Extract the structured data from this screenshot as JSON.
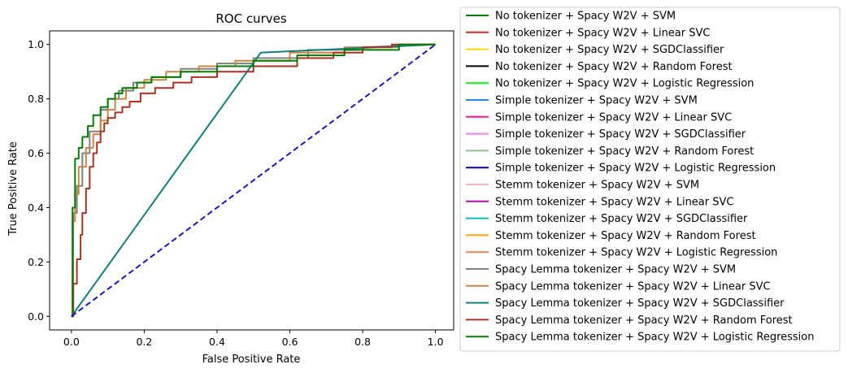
{
  "chart_data": {
    "type": "line",
    "title": "ROC curves",
    "xlabel": "False Positive Rate",
    "ylabel": "True Positive Rate",
    "xlim": [
      -0.06,
      1.05
    ],
    "ylim": [
      -0.05,
      1.05
    ],
    "xticks": [
      0.0,
      0.2,
      0.4,
      0.6,
      0.8,
      1.0
    ],
    "xtick_labels": [
      "0.0",
      "0.2",
      "0.4",
      "0.6",
      "0.8",
      "1.0"
    ],
    "yticks": [
      0.0,
      0.2,
      0.4,
      0.6,
      0.8,
      1.0
    ],
    "ytick_labels": [
      "0.0",
      "0.2",
      "0.4",
      "0.6",
      "0.8",
      "1.0"
    ],
    "grid": false,
    "legend_position": "outside-right",
    "diagonal": {
      "x": [
        0,
        1
      ],
      "y": [
        0,
        1
      ],
      "color": "#2010cc",
      "style": "dashed"
    },
    "series": [
      {
        "name": "No tokenizer + Spacy W2V + SVM",
        "color": "#008000"
      },
      {
        "name": "No tokenizer + Spacy W2V + Linear SVC",
        "color": "#e8221c"
      },
      {
        "name": "No tokenizer + Spacy W2V + SGDClassifier",
        "color": "#ffd700"
      },
      {
        "name": "No tokenizer + Spacy W2V + Random Forest",
        "color": "#000000"
      },
      {
        "name": "No tokenizer + Spacy W2V + Logistic Regression",
        "color": "#00ff00"
      },
      {
        "name": "Simple tokenizer + Spacy W2V + SVM",
        "color": "#1f8fe0"
      },
      {
        "name": "Simple tokenizer + Spacy W2V + Linear SVC",
        "color": "#ff1493"
      },
      {
        "name": "Simple tokenizer + Spacy W2V + SGDClassifier",
        "color": "#ee82ee"
      },
      {
        "name": "Simple tokenizer + Spacy W2V + Random Forest",
        "color": "#8fbc8f"
      },
      {
        "name": "Simple tokenizer + Spacy W2V + Logistic Regression",
        "color": "#0000b0"
      },
      {
        "name": "Stemm tokenizer + Spacy W2V + SVM",
        "color": "#ffb6c1"
      },
      {
        "name": "Stemm tokenizer + Spacy W2V + Linear SVC",
        "color": "#c000c0"
      },
      {
        "name": "Stemm tokenizer + Spacy W2V + SGDClassifier",
        "color": "#00bfbf"
      },
      {
        "name": "Stemm tokenizer + Spacy W2V + Random Forest",
        "color": "#ffa500"
      },
      {
        "name": "Stemm tokenizer + Spacy W2V + Logistic Regression",
        "color": "#f4844a"
      },
      {
        "name": "Spacy Lemma tokenizer + Spacy W2V + SVM",
        "color": "#808080",
        "x": [
          0,
          0.005,
          0.005,
          0.015,
          0.015,
          0.03,
          0.03,
          0.05,
          0.05,
          0.08,
          0.08,
          0.1,
          0.1,
          0.13,
          0.13,
          0.17,
          0.17,
          0.22,
          0.22,
          0.3,
          0.3,
          0.4,
          0.4,
          0.5,
          0.5,
          0.65,
          0.65,
          0.8,
          0.8,
          1.0
        ],
        "y": [
          0,
          0,
          0.38,
          0.38,
          0.48,
          0.48,
          0.6,
          0.6,
          0.68,
          0.68,
          0.76,
          0.76,
          0.8,
          0.8,
          0.83,
          0.83,
          0.86,
          0.86,
          0.88,
          0.88,
          0.91,
          0.91,
          0.93,
          0.93,
          0.95,
          0.95,
          0.98,
          0.98,
          0.99,
          1.0
        ]
      },
      {
        "name": "Spacy Lemma tokenizer + Spacy W2V + Linear SVC",
        "color": "#cd853f",
        "x": [
          0,
          0.003,
          0.003,
          0.01,
          0.01,
          0.02,
          0.02,
          0.04,
          0.04,
          0.06,
          0.06,
          0.08,
          0.08,
          0.1,
          0.1,
          0.12,
          0.12,
          0.15,
          0.15,
          0.2,
          0.2,
          0.26,
          0.26,
          0.35,
          0.35,
          0.45,
          0.45,
          0.6,
          0.6,
          0.75,
          0.75,
          0.9,
          0.9,
          1.0
        ],
        "y": [
          0,
          0,
          0.35,
          0.35,
          0.45,
          0.45,
          0.55,
          0.55,
          0.62,
          0.62,
          0.67,
          0.67,
          0.72,
          0.72,
          0.76,
          0.76,
          0.8,
          0.8,
          0.84,
          0.84,
          0.87,
          0.87,
          0.9,
          0.9,
          0.92,
          0.92,
          0.94,
          0.94,
          0.97,
          0.97,
          0.99,
          0.99,
          1.0,
          1.0
        ]
      },
      {
        "name": "Spacy Lemma tokenizer + Spacy W2V + SGDClassifier",
        "color": "#0f7f7f",
        "x": [
          0,
          0.52,
          1.0
        ],
        "y": [
          0,
          0.97,
          1.0
        ]
      },
      {
        "name": "Spacy Lemma tokenizer + Spacy W2V + Random Forest",
        "color": "#b03020",
        "x": [
          0,
          0.005,
          0.005,
          0.015,
          0.015,
          0.025,
          0.025,
          0.03,
          0.03,
          0.04,
          0.04,
          0.05,
          0.05,
          0.06,
          0.06,
          0.07,
          0.07,
          0.08,
          0.08,
          0.09,
          0.09,
          0.1,
          0.1,
          0.12,
          0.12,
          0.14,
          0.14,
          0.16,
          0.16,
          0.19,
          0.19,
          0.23,
          0.23,
          0.28,
          0.28,
          0.33,
          0.33,
          0.4,
          0.4,
          0.5,
          0.5,
          0.62,
          0.62,
          0.72,
          0.72,
          0.8,
          0.8,
          0.88,
          0.88,
          1.0
        ],
        "y": [
          0,
          0,
          0.12,
          0.12,
          0.21,
          0.21,
          0.3,
          0.3,
          0.38,
          0.38,
          0.47,
          0.47,
          0.55,
          0.55,
          0.6,
          0.6,
          0.64,
          0.64,
          0.68,
          0.68,
          0.71,
          0.71,
          0.73,
          0.73,
          0.75,
          0.75,
          0.77,
          0.77,
          0.79,
          0.79,
          0.82,
          0.82,
          0.84,
          0.84,
          0.86,
          0.86,
          0.88,
          0.88,
          0.9,
          0.9,
          0.92,
          0.92,
          0.95,
          0.95,
          0.97,
          0.97,
          0.99,
          0.99,
          1.0,
          1.0
        ]
      },
      {
        "name": "Spacy Lemma tokenizer + Spacy W2V + Logistic Regression",
        "color": "#008000",
        "x": [
          0,
          0.003,
          0.003,
          0.01,
          0.01,
          0.02,
          0.02,
          0.03,
          0.03,
          0.045,
          0.045,
          0.06,
          0.06,
          0.08,
          0.08,
          0.1,
          0.1,
          0.12,
          0.12,
          0.14,
          0.14,
          0.18,
          0.18,
          0.22,
          0.22,
          0.3,
          0.3,
          0.4,
          0.4,
          0.5,
          0.5,
          0.62,
          0.62,
          0.75,
          0.75,
          0.9,
          0.9,
          1.0
        ],
        "y": [
          0,
          0,
          0.4,
          0.4,
          0.58,
          0.58,
          0.62,
          0.62,
          0.66,
          0.66,
          0.7,
          0.7,
          0.74,
          0.74,
          0.77,
          0.77,
          0.8,
          0.8,
          0.82,
          0.82,
          0.84,
          0.84,
          0.86,
          0.86,
          0.88,
          0.88,
          0.9,
          0.9,
          0.92,
          0.92,
          0.94,
          0.94,
          0.96,
          0.96,
          0.98,
          0.98,
          1.0,
          1.0
        ]
      }
    ]
  }
}
